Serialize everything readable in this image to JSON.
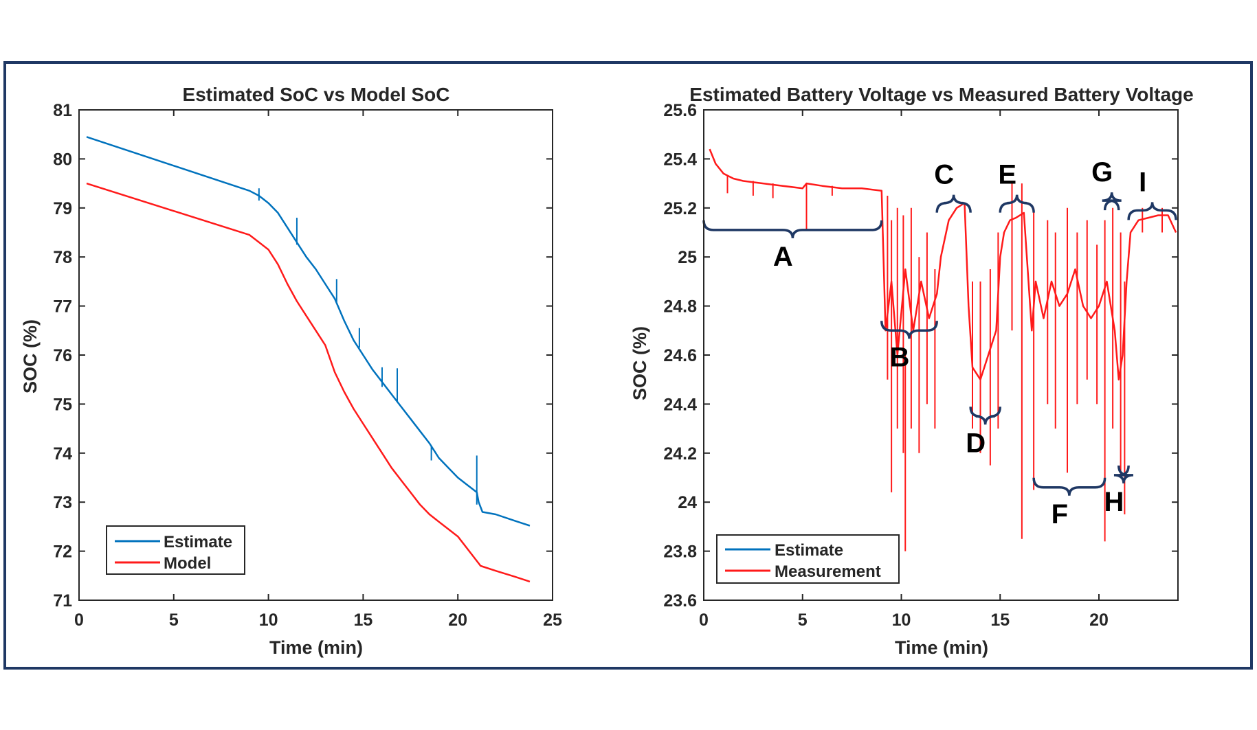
{
  "colors": {
    "frame": "#1f3864",
    "estimate": "#0072bd",
    "model": "#ff1a1a",
    "measurement": "#ff1a1a",
    "brace": "#1f3864",
    "axis": "#262626"
  },
  "chart_data": [
    {
      "type": "line",
      "title": "Estimated SoC vs Model SoC",
      "xlabel": "Time (min)",
      "ylabel": "SOC (%)",
      "xlim": [
        0,
        25
      ],
      "ylim": [
        71,
        81
      ],
      "xticks": [
        "0",
        "5",
        "10",
        "15",
        "20",
        "25"
      ],
      "yticks": [
        "71",
        "72",
        "73",
        "74",
        "75",
        "76",
        "77",
        "78",
        "79",
        "80",
        "81"
      ],
      "grid": false,
      "legend_position": "bottom-left",
      "legend": [
        "Estimate",
        "Model"
      ],
      "series": [
        {
          "name": "Estimate",
          "color": "#0072bd",
          "x": [
            0.4,
            9.0,
            9.5,
            10.0,
            10.5,
            11.0,
            11.5,
            12.0,
            12.5,
            13.0,
            13.5,
            14.0,
            14.5,
            15.0,
            15.5,
            16.0,
            16.5,
            17.0,
            17.5,
            18.0,
            18.5,
            19.0,
            19.5,
            20.0,
            20.5,
            21.0,
            21.1,
            21.3,
            22.0,
            23.0,
            23.8
          ],
          "y": [
            80.45,
            79.35,
            79.25,
            79.1,
            78.9,
            78.6,
            78.3,
            78.0,
            77.75,
            77.45,
            77.15,
            76.7,
            76.3,
            76.0,
            75.7,
            75.45,
            75.2,
            74.95,
            74.7,
            74.45,
            74.2,
            73.9,
            73.7,
            73.5,
            73.35,
            73.2,
            73.0,
            72.8,
            72.75,
            72.62,
            72.52
          ]
        },
        {
          "name": "Model",
          "color": "#ff1a1a",
          "x": [
            0.4,
            9.0,
            9.5,
            10.0,
            10.5,
            11.0,
            11.5,
            12.0,
            12.5,
            13.0,
            13.5,
            14.0,
            14.5,
            15.0,
            15.5,
            16.0,
            16.5,
            17.0,
            17.5,
            18.0,
            18.5,
            19.0,
            19.5,
            20.0,
            20.5,
            21.0,
            21.2,
            22.0,
            23.0,
            23.8
          ],
          "y": [
            79.5,
            78.45,
            78.3,
            78.15,
            77.85,
            77.45,
            77.1,
            76.8,
            76.5,
            76.2,
            75.65,
            75.25,
            74.9,
            74.6,
            74.3,
            74.0,
            73.7,
            73.45,
            73.2,
            72.95,
            72.75,
            72.6,
            72.45,
            72.3,
            72.05,
            71.8,
            71.7,
            71.6,
            71.48,
            71.38
          ]
        }
      ],
      "spikes": [
        {
          "x": 9.5,
          "y_low": 79.15,
          "y_high": 79.4
        },
        {
          "x": 11.5,
          "y_low": 78.25,
          "y_high": 78.8
        },
        {
          "x": 13.6,
          "y_low": 77.05,
          "y_high": 77.55
        },
        {
          "x": 14.8,
          "y_low": 76.15,
          "y_high": 76.55
        },
        {
          "x": 16.0,
          "y_low": 75.35,
          "y_high": 75.75
        },
        {
          "x": 16.8,
          "y_low": 75.05,
          "y_high": 75.73
        },
        {
          "x": 18.6,
          "y_low": 73.85,
          "y_high": 74.15
        },
        {
          "x": 21.0,
          "y_low": 72.95,
          "y_high": 73.95
        }
      ]
    },
    {
      "type": "line",
      "title": "Estimated Battery Voltage vs Measured Battery Voltage",
      "xlabel": "Time (min)",
      "ylabel": "SOC (%)",
      "xlim": [
        0,
        24
      ],
      "ylim": [
        23.6,
        25.6
      ],
      "xticks": [
        "0",
        "5",
        "10",
        "15",
        "20"
      ],
      "yticks": [
        "23.6",
        "23.8",
        "24",
        "24.2",
        "24.4",
        "24.6",
        "24.8",
        "25",
        "25.2",
        "25.4",
        "25.6"
      ],
      "grid": false,
      "legend_position": "bottom-left",
      "legend": [
        "Estimate",
        "Measurement"
      ],
      "series": [
        {
          "name": "Estimate",
          "color": "#0072bd",
          "x": [],
          "y": []
        },
        {
          "name": "Measurement",
          "color": "#ff1a1a",
          "x": [
            0.3,
            0.6,
            1.0,
            1.5,
            2.0,
            3.0,
            4.0,
            5.0,
            5.2,
            6.0,
            7.0,
            8.0,
            9.0,
            9.2,
            9.5,
            9.8,
            10.2,
            10.6,
            11.0,
            11.4,
            11.8,
            12.0,
            12.4,
            12.8,
            13.2,
            13.4,
            13.6,
            14.0,
            14.4,
            14.8,
            15.0,
            15.2,
            15.5,
            15.8,
            16.2,
            16.6,
            16.8,
            17.2,
            17.6,
            18.0,
            18.4,
            18.8,
            19.2,
            19.6,
            20.0,
            20.4,
            20.8,
            21.0,
            21.2,
            21.4,
            21.6,
            22.0,
            22.5,
            23.0,
            23.5,
            23.9
          ],
          "y": [
            25.44,
            25.38,
            25.34,
            25.32,
            25.31,
            25.3,
            25.29,
            25.28,
            25.3,
            25.29,
            25.28,
            25.28,
            25.27,
            24.7,
            24.9,
            24.6,
            24.95,
            24.7,
            24.9,
            24.75,
            24.85,
            25.0,
            25.15,
            25.2,
            25.22,
            24.8,
            24.55,
            24.5,
            24.6,
            24.7,
            25.0,
            25.1,
            25.15,
            25.16,
            25.18,
            24.7,
            24.9,
            24.75,
            24.9,
            24.8,
            24.85,
            24.95,
            24.8,
            24.75,
            24.8,
            24.9,
            24.7,
            24.5,
            24.6,
            24.9,
            25.1,
            25.15,
            25.16,
            25.17,
            25.17,
            25.1
          ]
        }
      ],
      "spikes": [
        {
          "x": 1.2,
          "y_low": 25.26,
          "y_high": 25.33
        },
        {
          "x": 2.5,
          "y_low": 25.25,
          "y_high": 25.31
        },
        {
          "x": 3.5,
          "y_low": 25.24,
          "y_high": 25.3
        },
        {
          "x": 5.2,
          "y_low": 25.11,
          "y_high": 25.3
        },
        {
          "x": 6.5,
          "y_low": 25.25,
          "y_high": 25.29
        },
        {
          "x": 9.3,
          "y_low": 24.5,
          "y_high": 25.25
        },
        {
          "x": 9.5,
          "y_low": 24.04,
          "y_high": 25.15
        },
        {
          "x": 9.8,
          "y_low": 24.3,
          "y_high": 25.2
        },
        {
          "x": 10.1,
          "y_low": 24.2,
          "y_high": 25.17
        },
        {
          "x": 10.2,
          "y_low": 23.8,
          "y_high": 24.6
        },
        {
          "x": 10.5,
          "y_low": 24.3,
          "y_high": 25.2
        },
        {
          "x": 10.9,
          "y_low": 24.2,
          "y_high": 25.0
        },
        {
          "x": 11.3,
          "y_low": 24.4,
          "y_high": 25.1
        },
        {
          "x": 11.7,
          "y_low": 24.3,
          "y_high": 24.95
        },
        {
          "x": 13.6,
          "y_low": 24.3,
          "y_high": 24.9
        },
        {
          "x": 14.0,
          "y_low": 24.2,
          "y_high": 24.9
        },
        {
          "x": 14.5,
          "y_low": 24.15,
          "y_high": 24.95
        },
        {
          "x": 14.9,
          "y_low": 24.3,
          "y_high": 25.1
        },
        {
          "x": 15.6,
          "y_low": 24.7,
          "y_high": 25.3
        },
        {
          "x": 16.1,
          "y_low": 23.85,
          "y_high": 25.3
        },
        {
          "x": 16.7,
          "y_low": 24.05,
          "y_high": 25.2
        },
        {
          "x": 17.4,
          "y_low": 24.4,
          "y_high": 25.15
        },
        {
          "x": 17.8,
          "y_low": 24.3,
          "y_high": 25.1
        },
        {
          "x": 18.4,
          "y_low": 24.12,
          "y_high": 25.2
        },
        {
          "x": 18.9,
          "y_low": 24.4,
          "y_high": 25.1
        },
        {
          "x": 19.4,
          "y_low": 24.5,
          "y_high": 25.15
        },
        {
          "x": 19.9,
          "y_low": 24.4,
          "y_high": 25.05
        },
        {
          "x": 20.3,
          "y_low": 23.84,
          "y_high": 25.15
        },
        {
          "x": 20.7,
          "y_low": 24.3,
          "y_high": 25.2
        },
        {
          "x": 21.1,
          "y_low": 24.1,
          "y_high": 25.1
        },
        {
          "x": 21.3,
          "y_low": 23.95,
          "y_high": 24.9
        },
        {
          "x": 22.2,
          "y_low": 25.1,
          "y_high": 25.2
        },
        {
          "x": 23.2,
          "y_low": 25.1,
          "y_high": 25.2
        }
      ],
      "annotations": [
        {
          "label": "A",
          "x_start": 0,
          "x_end": 9.0,
          "y": 25.11,
          "direction": "down"
        },
        {
          "label": "B",
          "x_start": 9.0,
          "x_end": 11.8,
          "y": 24.7,
          "direction": "down"
        },
        {
          "label": "C",
          "x_start": 11.8,
          "x_end": 13.5,
          "y": 25.22,
          "direction": "up"
        },
        {
          "label": "D",
          "x_start": 13.5,
          "x_end": 15.0,
          "y": 24.35,
          "direction": "down"
        },
        {
          "label": "E",
          "x_start": 15.0,
          "x_end": 16.7,
          "y": 25.22,
          "direction": "up"
        },
        {
          "label": "F",
          "x_start": 16.7,
          "x_end": 20.3,
          "y": 24.06,
          "direction": "down"
        },
        {
          "label": "G",
          "x_start": 20.3,
          "x_end": 21.0,
          "y": 25.23,
          "direction": "up"
        },
        {
          "label": "H",
          "x_start": 21.0,
          "x_end": 21.5,
          "y": 24.11,
          "direction": "down"
        },
        {
          "label": "I",
          "x_start": 21.5,
          "x_end": 23.9,
          "y": 25.19,
          "direction": "up"
        }
      ]
    }
  ]
}
